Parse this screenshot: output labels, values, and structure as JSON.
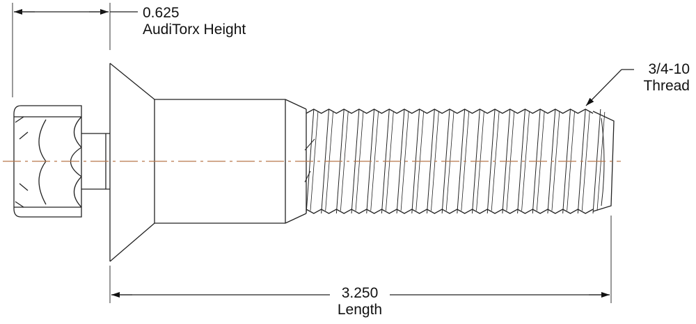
{
  "drawing": {
    "head_height": {
      "value": "0.625",
      "caption": "AudiTorx Height"
    },
    "thread": {
      "line1": "3/4-10",
      "line2": "Thread"
    },
    "length": {
      "value": "3.250",
      "caption": "Length"
    },
    "centerline_color": "#b8784a",
    "line_color": "#222222",
    "thread_pitch_count": 19
  }
}
